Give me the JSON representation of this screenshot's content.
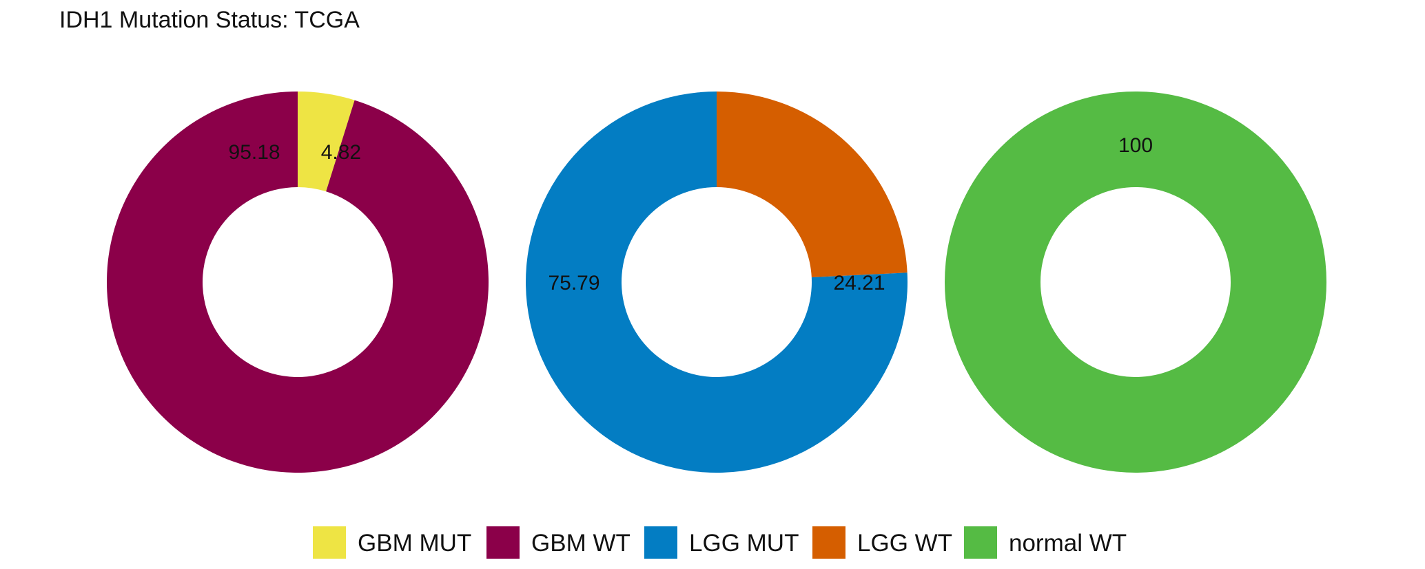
{
  "chart_data": {
    "type": "pie",
    "title": "IDH1 Mutation Status: TCGA",
    "legend_position": "bottom",
    "legend": [
      {
        "label": "GBM MUT",
        "color": "#EEE444"
      },
      {
        "label": "GBM WT",
        "color": "#8B0049"
      },
      {
        "label": "LGG MUT",
        "color": "#037DC3"
      },
      {
        "label": "LGG WT",
        "color": "#D55E00"
      },
      {
        "label": "normal WT",
        "color": "#55BB44"
      }
    ],
    "pies": [
      {
        "slices": [
          {
            "category": "GBM MUT",
            "value": 4.82,
            "label": "4.82",
            "color": "#EEE444"
          },
          {
            "category": "GBM WT",
            "value": 95.18,
            "label": "95.18",
            "color": "#8B0049"
          }
        ]
      },
      {
        "slices": [
          {
            "category": "LGG WT",
            "value": 24.21,
            "label": "24.21",
            "color": "#D55E00"
          },
          {
            "category": "LGG MUT",
            "value": 75.79,
            "label": "75.79",
            "color": "#037DC3"
          }
        ]
      },
      {
        "slices": [
          {
            "category": "normal WT",
            "value": 100,
            "label": "100",
            "color": "#55BB44"
          }
        ]
      }
    ]
  }
}
